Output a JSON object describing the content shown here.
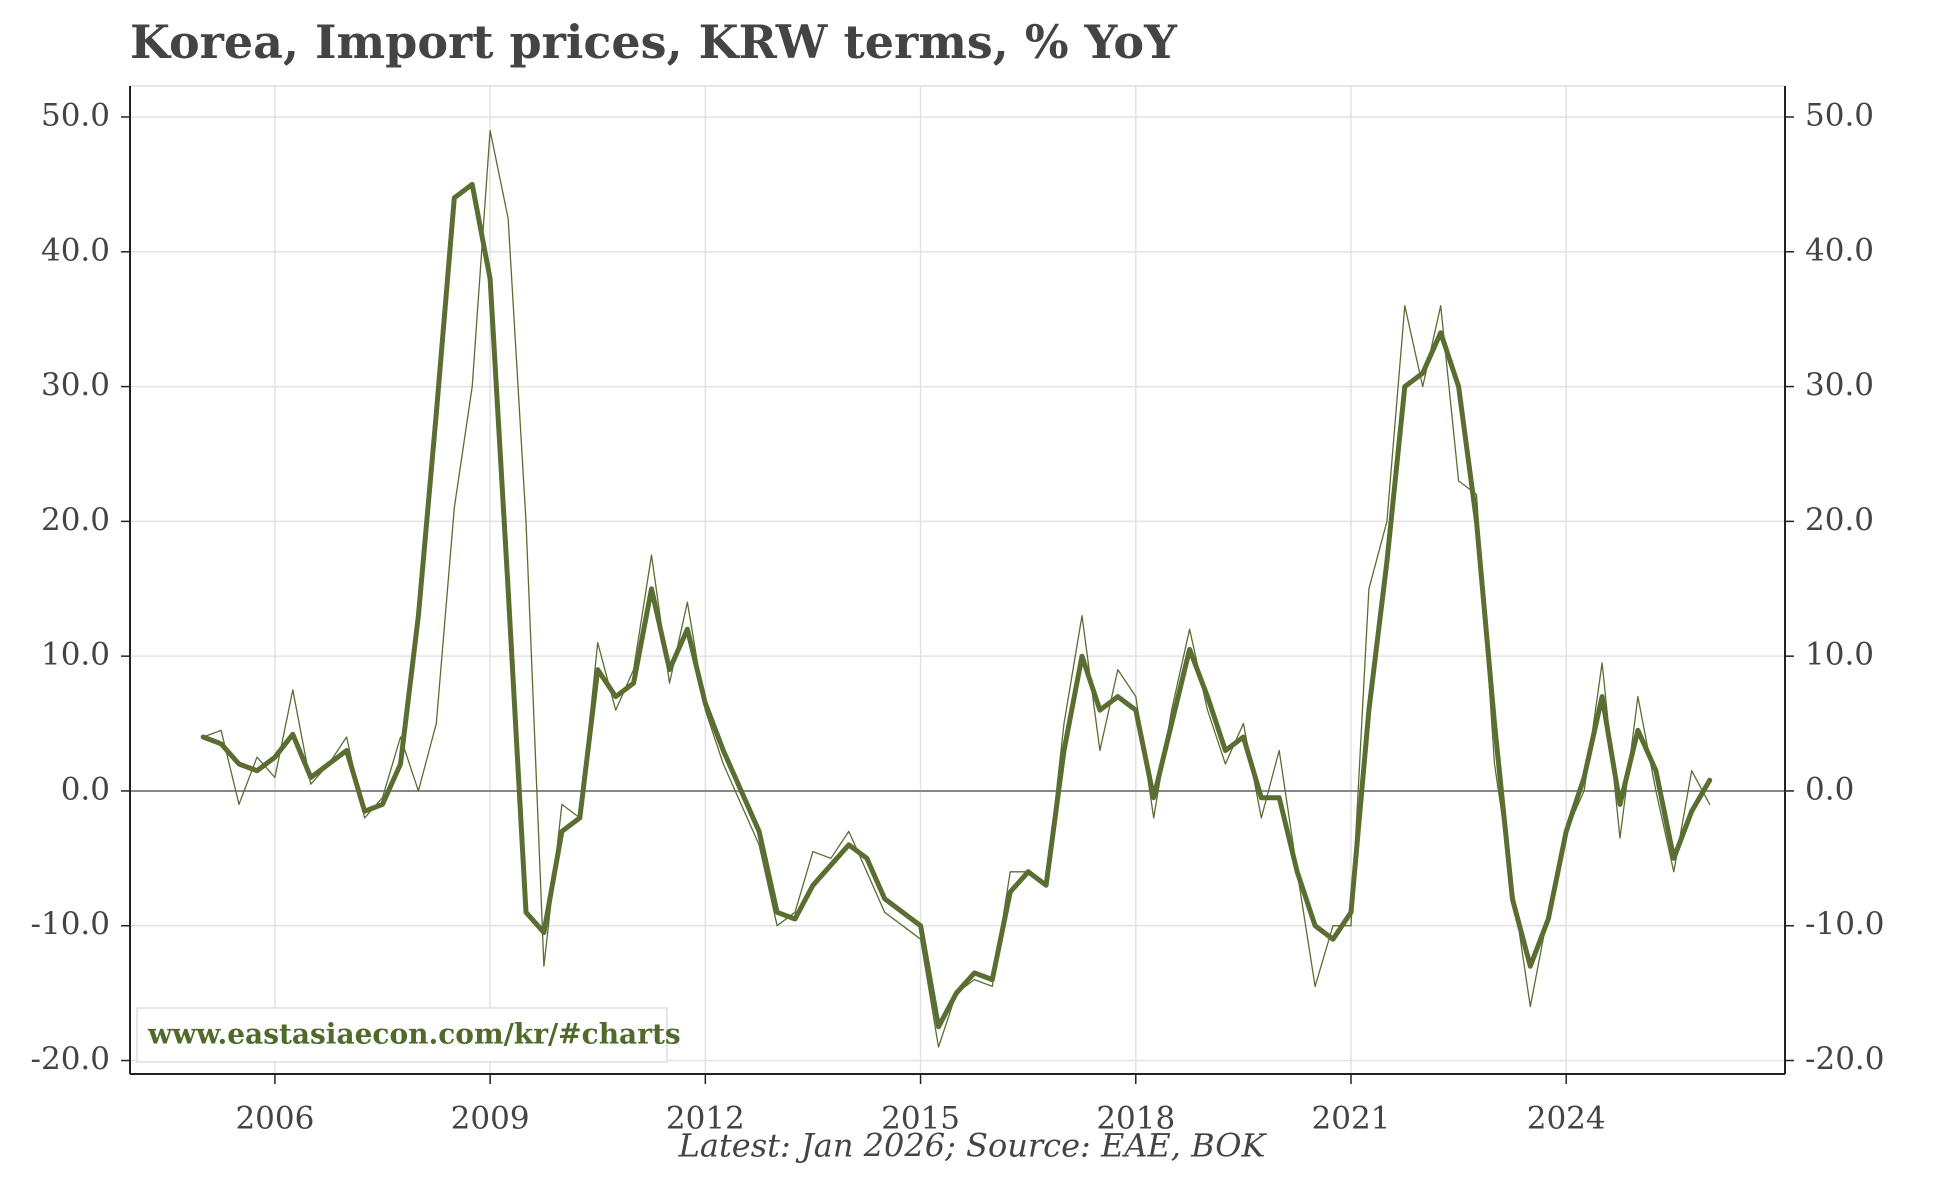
{
  "chart_data": {
    "type": "line",
    "title": "Korea, Import prices, KRW terms, % YoY",
    "annotation": "www.eastasiaecon.com/kr/#charts",
    "footer": "Latest: Jan 2026; Source: EAE, BOK",
    "x": [
      2005.0,
      2005.25,
      2005.5,
      2005.75,
      2006.0,
      2006.25,
      2006.5,
      2006.75,
      2007.0,
      2007.25,
      2007.5,
      2007.75,
      2008.0,
      2008.25,
      2008.5,
      2008.75,
      2009.0,
      2009.25,
      2009.5,
      2009.75,
      2010.0,
      2010.25,
      2010.5,
      2010.75,
      2011.0,
      2011.25,
      2011.5,
      2011.75,
      2012.0,
      2012.25,
      2012.5,
      2012.75,
      2013.0,
      2013.25,
      2013.5,
      2013.75,
      2014.0,
      2014.25,
      2014.5,
      2014.75,
      2015.0,
      2015.25,
      2015.5,
      2015.75,
      2016.0,
      2016.25,
      2016.5,
      2016.75,
      2017.0,
      2017.25,
      2017.5,
      2017.75,
      2018.0,
      2018.25,
      2018.5,
      2018.75,
      2019.0,
      2019.25,
      2019.5,
      2019.75,
      2020.0,
      2020.25,
      2020.5,
      2020.75,
      2021.0,
      2021.25,
      2021.5,
      2021.75,
      2022.0,
      2022.25,
      2022.5,
      2022.75,
      2023.0,
      2023.25,
      2023.5,
      2023.75,
      2024.0,
      2024.25,
      2024.5,
      2024.75,
      2025.0,
      2025.25,
      2025.5,
      2025.75,
      2026.0
    ],
    "series": [
      {
        "color": "#5a6e32",
        "width": "thin",
        "values": [
          4,
          4.5,
          -1,
          2.5,
          1,
          7.5,
          0.5,
          2,
          4,
          -2,
          -0.5,
          4,
          0,
          5,
          21,
          30,
          49,
          42.5,
          20,
          -13,
          -1,
          -2,
          11,
          6,
          9,
          17.5,
          8,
          14,
          6,
          2,
          -1,
          -4,
          -10,
          -9,
          -4.5,
          -5,
          -3,
          -6,
          -9,
          -10,
          -11,
          -19,
          -15,
          -14,
          -14.5,
          -6,
          -6,
          -7,
          5,
          13,
          3,
          9,
          7,
          -2,
          6,
          12,
          6,
          2,
          5,
          -2,
          3,
          -6,
          -14.5,
          -10,
          -10,
          15,
          20,
          36,
          30,
          36,
          23,
          22,
          2,
          -7,
          -16,
          -9,
          -3,
          0,
          9.5,
          -3.5,
          7,
          0,
          -6,
          1.5,
          -1
        ]
      },
      {
        "color": "#5a6e32",
        "width": "thick",
        "values": [
          4,
          3.5,
          2,
          1.5,
          2.5,
          4.2,
          1,
          2,
          3,
          -1.5,
          -1,
          2,
          13,
          28,
          44,
          45,
          38,
          15,
          -9,
          -10.5,
          -3,
          -2,
          9,
          7,
          8,
          15,
          9,
          12,
          6.5,
          3,
          0,
          -3,
          -9,
          -9.5,
          -7,
          -5.5,
          -4,
          -5,
          -8,
          -9,
          -10,
          -17.5,
          -15,
          -13.5,
          -14,
          -7.5,
          -6,
          -7,
          3,
          10,
          6,
          7,
          6,
          -0.5,
          5,
          10.5,
          7,
          3,
          4,
          -0.5,
          -0.5,
          -6,
          -10,
          -11,
          -9,
          6,
          17,
          30,
          31,
          34,
          30,
          20,
          5,
          -8,
          -13,
          -9.5,
          -3,
          1,
          7,
          -1,
          4.5,
          1.5,
          -5,
          -1.5,
          0.8
        ]
      }
    ],
    "xlim": [
      2003.98,
      2027.05
    ],
    "xticks": [
      2006,
      2009,
      2012,
      2015,
      2018,
      2021,
      2024
    ],
    "ylim": [
      -21,
      52.3
    ],
    "yticks": [
      {
        "value": -20,
        "label": "-20.0"
      },
      {
        "value": -10,
        "label": "-10.0"
      },
      {
        "value": 0,
        "label": "0.0"
      },
      {
        "value": 10,
        "label": "10.0"
      },
      {
        "value": 20,
        "label": "20.0"
      },
      {
        "value": 30,
        "label": "30.0"
      },
      {
        "value": 40,
        "label": "40.0"
      },
      {
        "value": 50,
        "label": "50.0"
      }
    ],
    "y2lim": [
      -21,
      52.3
    ],
    "y2ticks": [
      {
        "value": -20,
        "label": "-20.0"
      },
      {
        "value": -10,
        "label": "-10.0"
      },
      {
        "value": 0,
        "label": "0.0"
      },
      {
        "value": 10,
        "label": "10.0"
      },
      {
        "value": 20,
        "label": "20.0"
      },
      {
        "value": 30,
        "label": "30.0"
      },
      {
        "value": 40,
        "label": "40.0"
      },
      {
        "value": 50,
        "label": "50.0"
      }
    ],
    "grid": true
  }
}
